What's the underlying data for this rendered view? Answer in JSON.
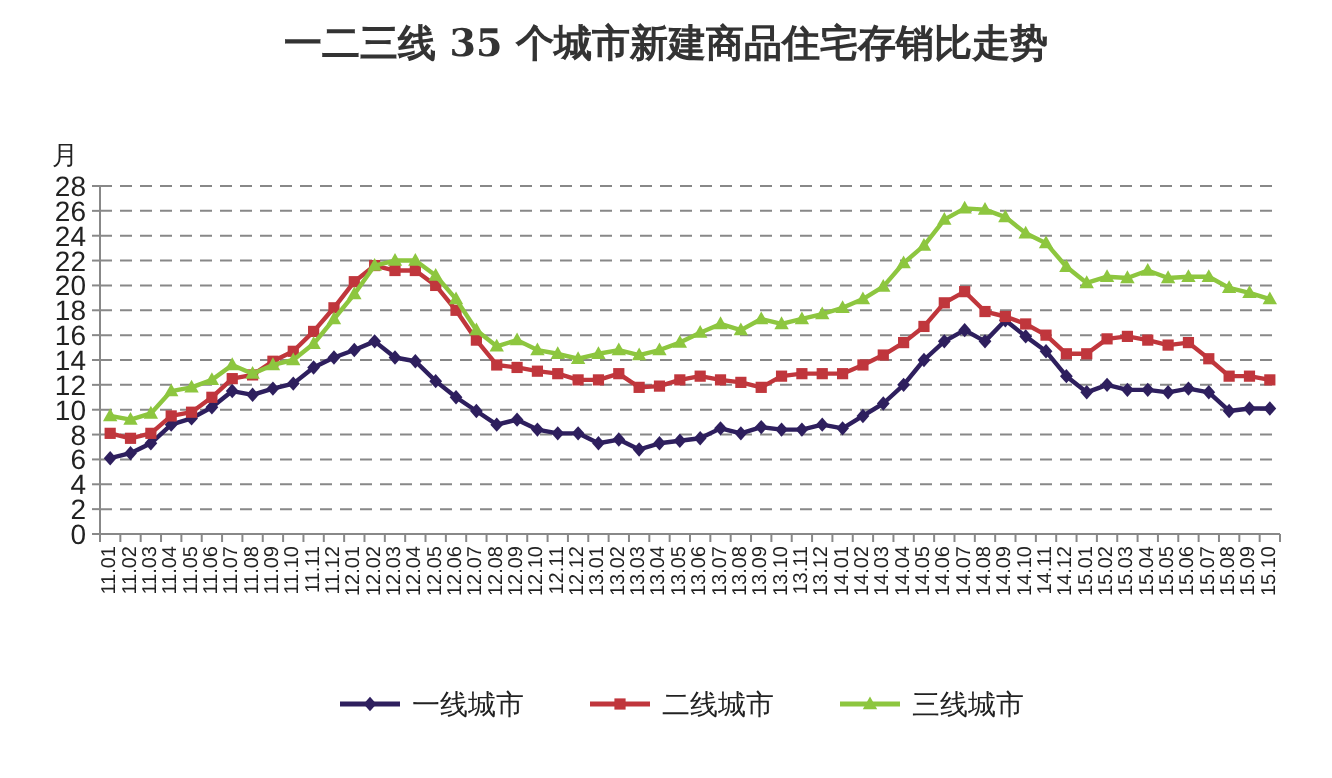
{
  "chart_data": {
    "type": "line",
    "title": "一二三线 35 个城市新建商品住宅存销比走势",
    "ylabel": "月",
    "categories": [
      "11.01",
      "11.02",
      "11.03",
      "11.04",
      "11.05",
      "11.06",
      "11.07",
      "11.08",
      "11.09",
      "11.10",
      "11.11",
      "11.12",
      "12.01",
      "12.02",
      "12.03",
      "12.04",
      "12.05",
      "12.06",
      "12.07",
      "12.08",
      "12.09",
      "12.10",
      "12.11",
      "12.12",
      "13.01",
      "13.02",
      "13.03",
      "13.04",
      "13.05",
      "13.06",
      "13.07",
      "13.08",
      "13.09",
      "13.10",
      "13.11",
      "13.12",
      "14.01",
      "14.02",
      "14.03",
      "14.04",
      "14.05",
      "14.06",
      "14.07",
      "14.08",
      "14.09",
      "14.10",
      "14.11",
      "14.12",
      "15.01",
      "15.02",
      "15.03",
      "15.04",
      "15.05",
      "15.06",
      "15.07",
      "15.08",
      "15.09",
      "15.10"
    ],
    "series": [
      {
        "name": "一线城市",
        "color": "#2e1f5e",
        "marker": "diamond",
        "values": [
          6.1,
          6.5,
          7.3,
          8.8,
          9.3,
          10.2,
          11.5,
          11.2,
          11.7,
          12.1,
          13.4,
          14.2,
          14.8,
          15.5,
          14.2,
          13.9,
          12.3,
          11.0,
          9.9,
          8.8,
          9.2,
          8.4,
          8.1,
          8.1,
          7.3,
          7.6,
          6.8,
          7.3,
          7.5,
          7.7,
          8.5,
          8.1,
          8.6,
          8.4,
          8.4,
          8.8,
          8.5,
          9.5,
          10.5,
          12.0,
          14.0,
          15.5,
          16.4,
          15.5,
          17.2,
          15.9,
          14.7,
          12.7,
          11.4,
          12.0,
          11.6,
          11.6,
          11.4,
          11.7,
          11.4,
          9.9,
          10.1,
          10.1
        ]
      },
      {
        "name": "二线城市",
        "color": "#c0363c",
        "marker": "square",
        "values": [
          8.1,
          7.7,
          8.1,
          9.5,
          9.8,
          11.0,
          12.5,
          12.8,
          13.9,
          14.7,
          16.3,
          18.2,
          20.3,
          21.6,
          21.2,
          21.2,
          20.0,
          18.0,
          15.6,
          13.6,
          13.4,
          13.1,
          12.9,
          12.4,
          12.4,
          12.9,
          11.8,
          11.9,
          12.4,
          12.7,
          12.4,
          12.2,
          11.8,
          12.7,
          12.9,
          12.9,
          12.9,
          13.6,
          14.4,
          15.4,
          16.7,
          18.6,
          19.5,
          17.9,
          17.5,
          16.9,
          16.0,
          14.5,
          14.5,
          15.7,
          15.9,
          15.6,
          15.2,
          15.4,
          14.1,
          12.7,
          12.7,
          12.4
        ]
      },
      {
        "name": "三线城市",
        "color": "#8dc63f",
        "marker": "triangle",
        "values": [
          9.5,
          9.2,
          9.7,
          11.5,
          11.8,
          12.4,
          13.6,
          12.9,
          13.6,
          14.0,
          15.3,
          17.3,
          19.3,
          21.6,
          22.0,
          22.0,
          20.8,
          18.9,
          16.4,
          15.1,
          15.6,
          14.8,
          14.5,
          14.1,
          14.5,
          14.8,
          14.4,
          14.8,
          15.4,
          16.2,
          16.9,
          16.4,
          17.3,
          16.9,
          17.3,
          17.7,
          18.2,
          18.9,
          19.9,
          21.8,
          23.2,
          25.3,
          26.2,
          26.1,
          25.5,
          24.2,
          23.4,
          21.5,
          20.2,
          20.7,
          20.6,
          21.2,
          20.6,
          20.7,
          20.7,
          19.8,
          19.4,
          18.9
        ]
      }
    ],
    "ylim": [
      0,
      28
    ],
    "yticks": [
      0,
      2,
      4,
      6,
      8,
      10,
      12,
      14,
      16,
      18,
      20,
      22,
      24,
      26,
      28
    ],
    "grid": "y",
    "legend": "bottom"
  }
}
